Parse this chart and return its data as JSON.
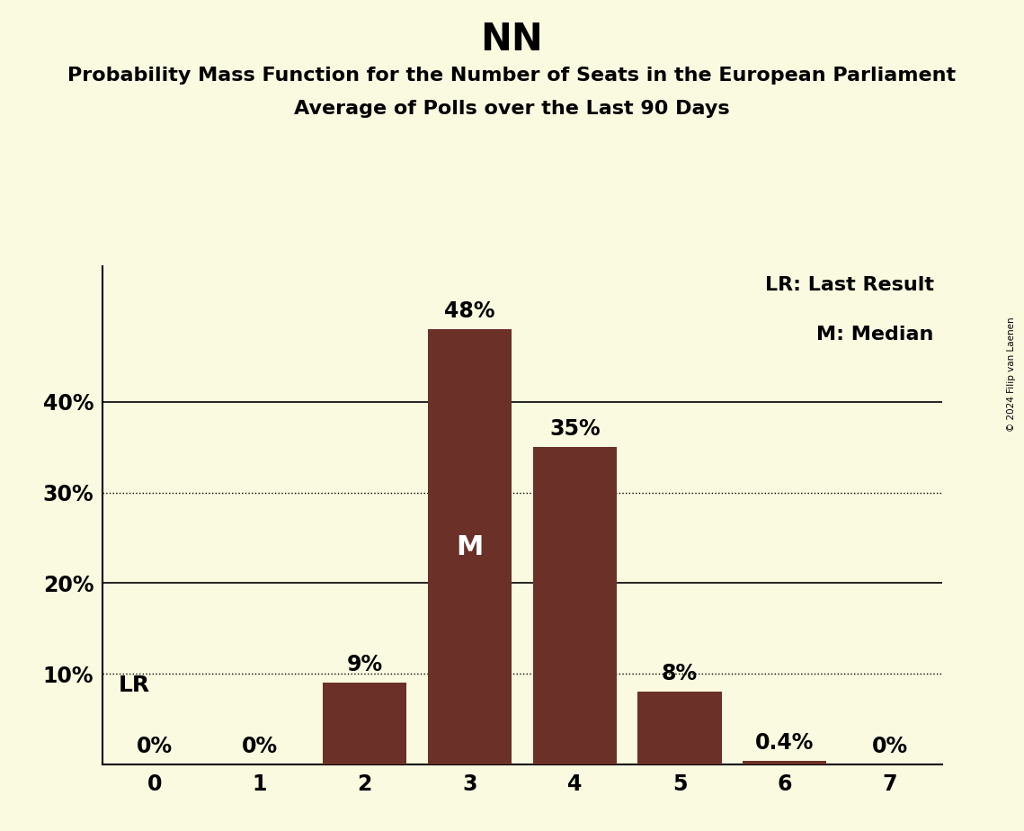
{
  "title": "NN",
  "subtitle1": "Probability Mass Function for the Number of Seats in the European Parliament",
  "subtitle2": "Average of Polls over the Last 90 Days",
  "copyright": "© 2024 Filip van Laenen",
  "categories": [
    0,
    1,
    2,
    3,
    4,
    5,
    6,
    7
  ],
  "values": [
    0.0,
    0.0,
    9.0,
    48.0,
    35.0,
    8.0,
    0.4,
    0.0
  ],
  "bar_color": "#6b3028",
  "background_color": "#fafae0",
  "bar_labels": [
    "0%",
    "0%",
    "9%",
    "48%",
    "35%",
    "8%",
    "0.4%",
    "0%"
  ],
  "median_bar": 3,
  "median_label": "M",
  "lr_bar": 0,
  "lr_label": "LR",
  "legend_lr": "LR: Last Result",
  "legend_m": "M: Median",
  "yticks": [
    0,
    10,
    20,
    30,
    40
  ],
  "ytick_labels": [
    "",
    "10%",
    "20%",
    "30%",
    "40%"
  ],
  "solid_gridlines": [
    20.0,
    40.0
  ],
  "dotted_gridlines": [
    10.0,
    30.0
  ],
  "ylim": [
    0,
    55
  ],
  "xlim": [
    -0.5,
    7.5
  ],
  "title_fontsize": 30,
  "subtitle_fontsize": 16,
  "bar_label_fontsize": 17,
  "tick_fontsize": 17,
  "legend_fontsize": 16,
  "median_label_fontsize": 22,
  "lr_label_fontsize": 18,
  "ytick_label_fontsize": 17
}
